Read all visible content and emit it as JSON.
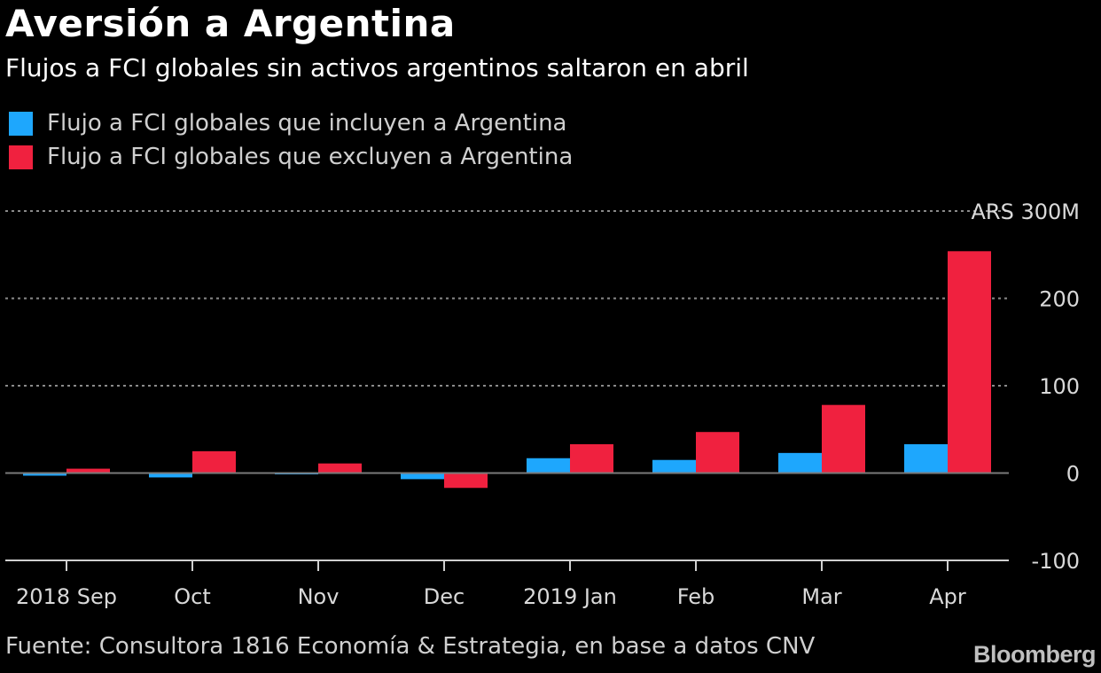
{
  "header": {
    "title": "Aversión a Argentina",
    "subtitle": "Flujos a FCI globales sin activos argentinos saltaron en abril"
  },
  "footer": {
    "source": "Fuente: Consultora 1816 Economía & Estrategia, en base a datos CNV",
    "brand": "Bloomberg"
  },
  "chart_data": {
    "type": "bar",
    "title": "Aversión a Argentina",
    "subtitle": "Flujos a FCI globales sin activos argentinos saltaron en abril",
    "categories": [
      "2018 Sep",
      "Oct",
      "Nov",
      "Dec",
      "2019 Jan",
      "Feb",
      "Mar",
      "Apr"
    ],
    "series": [
      {
        "name": "Flujo a FCI globales que incluyen a Argentina",
        "color": "#1ea7fd",
        "values": [
          -3,
          -5,
          -1,
          -7,
          17,
          15,
          23,
          33
        ]
      },
      {
        "name": "Flujo a FCI globales que excluyen a Argentina",
        "color": "#f0213f",
        "values": [
          5,
          25,
          11,
          -17,
          33,
          47,
          78,
          254
        ]
      }
    ],
    "ylim": [
      -100,
      300
    ],
    "yticks": [
      {
        "value": 300,
        "label": "ARS 300M"
      },
      {
        "value": 200,
        "label": "200"
      },
      {
        "value": 100,
        "label": "100"
      },
      {
        "value": 0,
        "label": "0"
      },
      {
        "value": -100,
        "label": "-100"
      }
    ],
    "grid": true,
    "legend_position": "top-left"
  }
}
